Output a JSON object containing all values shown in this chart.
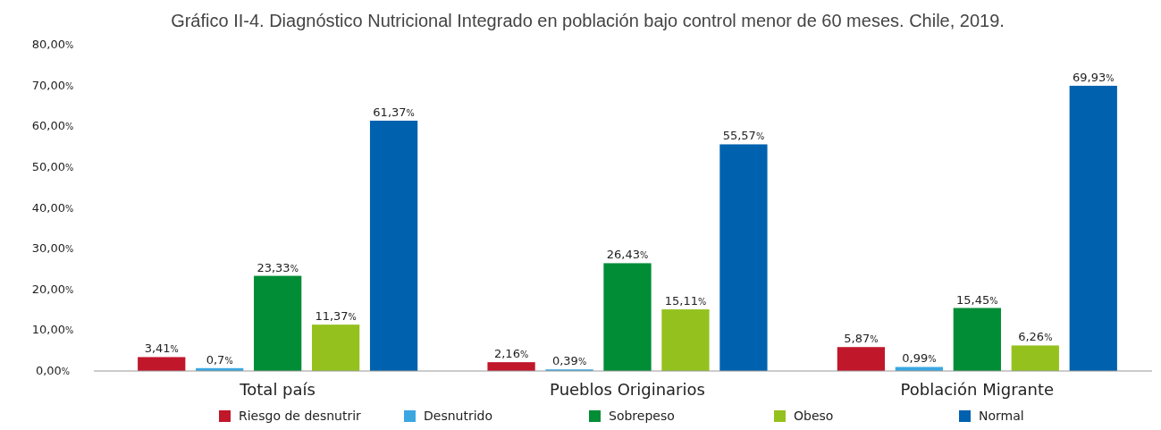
{
  "chart_data": {
    "type": "bar",
    "title": "Gráfico II-4. Diagnóstico Nutricional Integrado en población bajo control menor de 60 meses. Chile, 2019.",
    "categories": [
      "Total país",
      "Pueblos Originarios",
      "Población Migrante"
    ],
    "series": [
      {
        "name": "Riesgo de desnutrir",
        "color": "#c1172b",
        "values": [
          3.41,
          2.16,
          5.87
        ],
        "value_labels": [
          "3,41%",
          "2,16%",
          "5,87%"
        ]
      },
      {
        "name": "Desnutrido",
        "color": "#3ba7e1",
        "values": [
          0.7,
          0.39,
          0.99
        ],
        "value_labels": [
          "0,7%",
          "0,39%",
          "0,99%"
        ]
      },
      {
        "name": "Sobrepeso",
        "color": "#008d36",
        "values": [
          23.33,
          26.43,
          15.45
        ],
        "value_labels": [
          "23,33%",
          "26,43%",
          "15,45%"
        ]
      },
      {
        "name": "Obeso",
        "color": "#95c11f",
        "values": [
          11.37,
          15.11,
          6.26
        ],
        "value_labels": [
          "11,37%",
          "15,11%",
          "6,26%"
        ]
      },
      {
        "name": "Normal",
        "color": "#0062af",
        "values": [
          61.37,
          55.57,
          69.93
        ],
        "value_labels": [
          "61,37%",
          "55,57%",
          "69,93%"
        ]
      }
    ],
    "ylim": [
      0,
      80
    ],
    "yticks": [
      {
        "value": 0,
        "label": "0,00%"
      },
      {
        "value": 10,
        "label": "10,00%"
      },
      {
        "value": 20,
        "label": "20,00%"
      },
      {
        "value": 30,
        "label": "30,00%"
      },
      {
        "value": 40,
        "label": "40,00%"
      },
      {
        "value": 50,
        "label": "50,00%"
      },
      {
        "value": 60,
        "label": "60,00%"
      },
      {
        "value": 70,
        "label": "70,00%"
      },
      {
        "value": 80,
        "label": "80,00%"
      }
    ],
    "grid": false,
    "legend": "bottom"
  }
}
